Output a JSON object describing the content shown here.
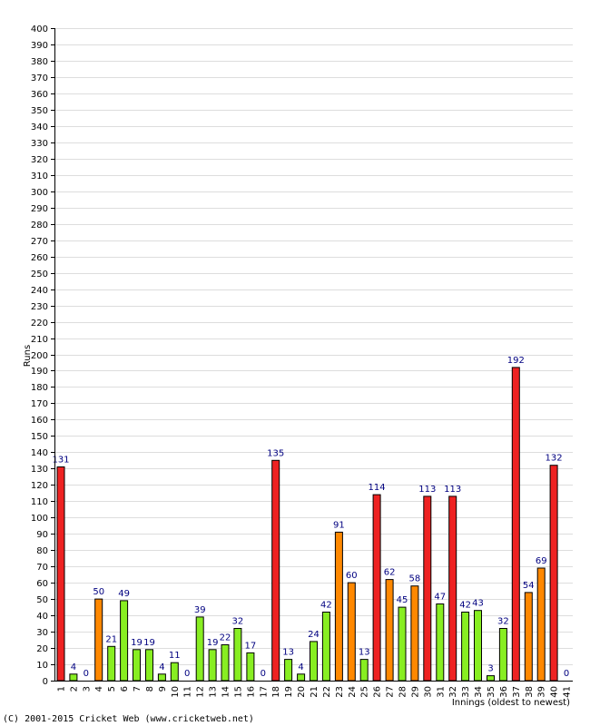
{
  "chart_data": {
    "type": "bar",
    "ylabel": "Runs",
    "xlabel": "Innings (oldest to newest)",
    "ylim": [
      0,
      400
    ],
    "ytick_step": 10,
    "grid": true,
    "categories": [
      "1",
      "2",
      "3",
      "4",
      "5",
      "6",
      "7",
      "8",
      "9",
      "10",
      "11",
      "12",
      "13",
      "14",
      "15",
      "16",
      "17",
      "18",
      "19",
      "20",
      "21",
      "22",
      "23",
      "24",
      "25",
      "26",
      "27",
      "28",
      "29",
      "30",
      "31",
      "32",
      "33",
      "34",
      "35",
      "36",
      "37",
      "38",
      "39",
      "40",
      "41"
    ],
    "values": [
      131,
      4,
      0,
      50,
      21,
      49,
      19,
      19,
      4,
      11,
      0,
      39,
      19,
      22,
      32,
      17,
      0,
      135,
      13,
      4,
      24,
      42,
      91,
      60,
      13,
      114,
      62,
      45,
      58,
      113,
      47,
      113,
      42,
      43,
      3,
      32,
      192,
      54,
      69,
      132,
      0
    ],
    "colors": {
      "below_50": "#88ee22",
      "fifty_to_99": "#ff8800",
      "hundred_plus": "#ee2222",
      "bar_border": "#000000",
      "data_label": "#000080",
      "grid": "#dddddd"
    }
  },
  "footer": {
    "credit": "(C) 2001-2015 Cricket Web (www.cricketweb.net)"
  }
}
